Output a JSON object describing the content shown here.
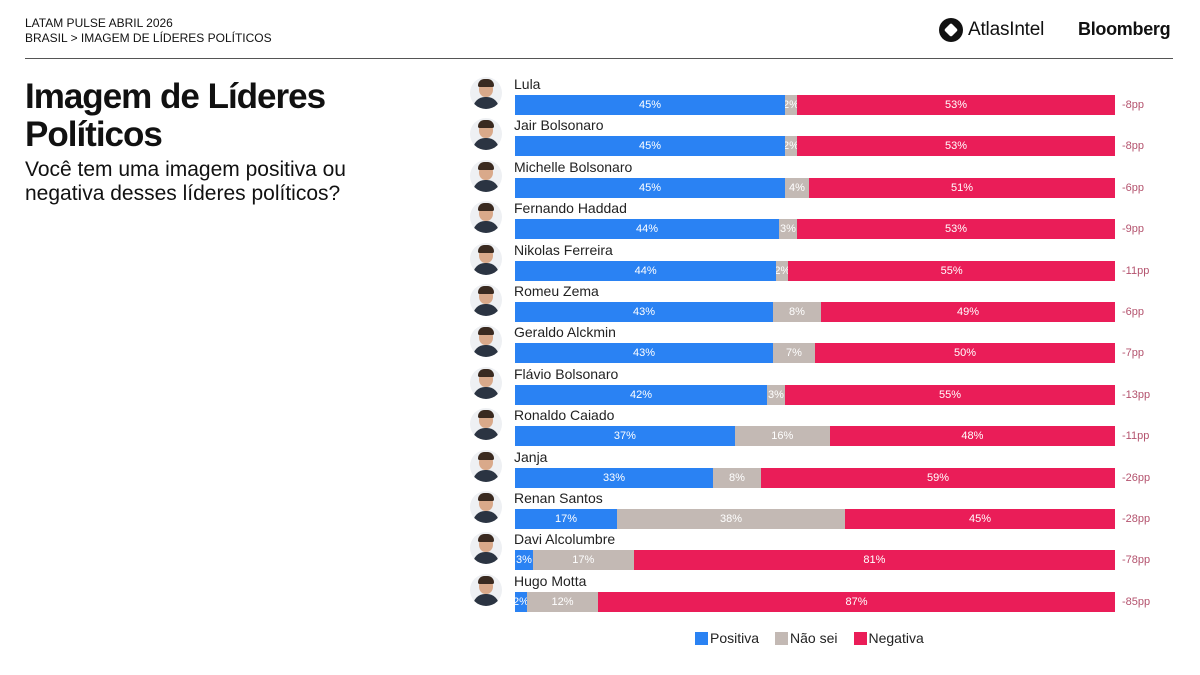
{
  "header": {
    "kicker": "LATAM PULSE ABRIL 2026",
    "breadcrumb": "BRASIL > IMAGEM DE LÍDERES POLÍTICOS",
    "logos": {
      "atlas": "AtlasIntel",
      "bloomberg": "Bloomberg"
    }
  },
  "title": "Imagem de Líderes Políticos",
  "subtitle": "Você tem uma imagem positiva ou negativa desses líderes políticos?",
  "colors": {
    "positiva": "#2a82f3",
    "nao_sei": "#c3b9b4",
    "negativa": "#ea1d58",
    "net": "#b4536e"
  },
  "chart_data": {
    "type": "bar",
    "orientation": "horizontal",
    "stacked": true,
    "title": "Imagem de Líderes Políticos",
    "xlabel": "",
    "ylabel": "",
    "xlim": [
      0,
      100
    ],
    "legend": {
      "placement": "bottom",
      "entries": [
        "Positiva",
        "Não sei",
        "Negativa"
      ]
    },
    "categories": [
      "Lula",
      "Jair Bolsonaro",
      "Michelle Bolsonaro",
      "Fernando Haddad",
      "Nikolas Ferreira",
      "Romeu Zema",
      "Geraldo Alckmin",
      "Flávio Bolsonaro",
      "Ronaldo Caiado",
      "Janja",
      "Renan Santos",
      "Davi Alcolumbre",
      "Hugo Motta"
    ],
    "series": [
      {
        "name": "Positiva",
        "values": [
          45,
          45,
          45,
          44,
          44,
          43,
          43,
          42,
          37,
          33,
          17,
          3,
          2
        ]
      },
      {
        "name": "Não sei",
        "values": [
          2,
          2,
          4,
          3,
          2,
          8,
          7,
          3,
          16,
          8,
          38,
          17,
          12
        ]
      },
      {
        "name": "Negativa",
        "values": [
          53,
          53,
          51,
          53,
          55,
          49,
          50,
          55,
          48,
          59,
          45,
          81,
          87
        ]
      }
    ],
    "net_labels": [
      "-8pp",
      "-8pp",
      "-6pp",
      "-9pp",
      "-11pp",
      "-6pp",
      "-7pp",
      "-13pp",
      "-11pp",
      "-26pp",
      "-28pp",
      "-78pp",
      "-85pp"
    ]
  }
}
